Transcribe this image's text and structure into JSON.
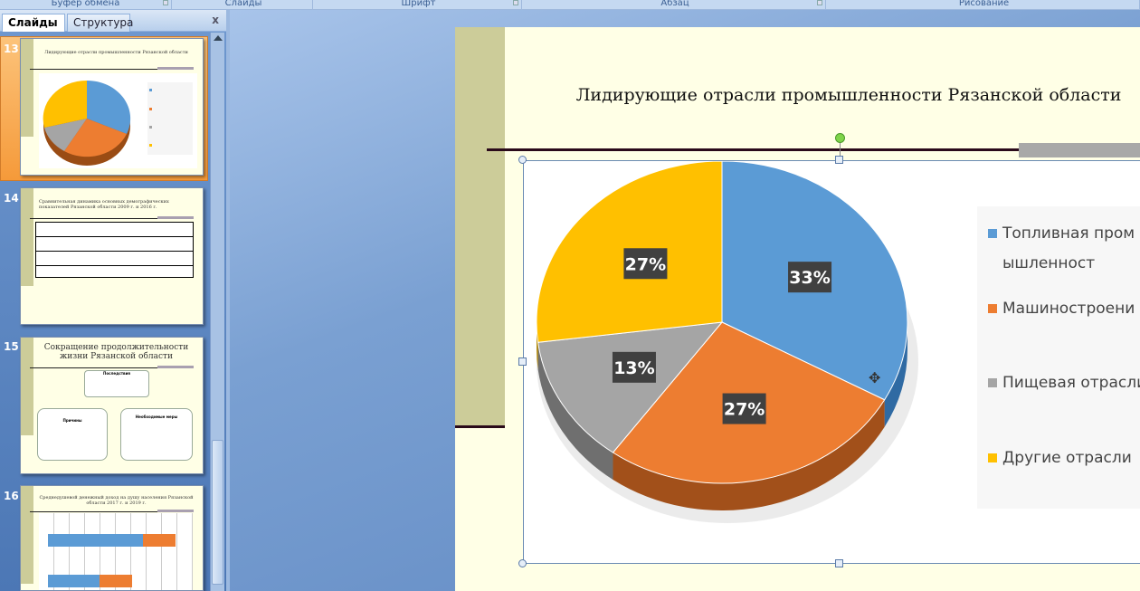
{
  "ribbon": {
    "groups": [
      "Буфер обмена",
      "Слайды",
      "Шрифт",
      "Абзац",
      "Рисование"
    ]
  },
  "panel": {
    "tabs": [
      "Слайды",
      "Структура"
    ],
    "close": "x"
  },
  "thumbnails": [
    {
      "number": "13",
      "title": "Лидирующие отрасли промышленности Рязанской области"
    },
    {
      "number": "14",
      "title": "Сравнительная динамика основных демографических показателей Рязанской области 2009 г. и 2016 г."
    },
    {
      "number": "15",
      "title": "Сокращение продолжительности жизни Рязанской области",
      "boxes": [
        "Последствия",
        "Причины",
        "Необходимые меры"
      ]
    },
    {
      "number": "16",
      "title": "Среднедушевой денежный доход на душу населения Рязанской области 2017 г. и 2019 г."
    }
  ],
  "slide": {
    "title": "Лидирующие отрасли промышленности Рязанской области",
    "chart": {
      "type": "pie",
      "labels": [
        "Топливная промышленност",
        "Машиностроени",
        "Пищевая отрасли",
        "Другие отрасли"
      ],
      "values": [
        33,
        27,
        13,
        27
      ],
      "value_labels": [
        "33%",
        "27%",
        "13%",
        "27%"
      ],
      "colors": [
        "#5b9bd5",
        "#ed7d31",
        "#a5a5a5",
        "#ffc000"
      ],
      "legend_position": "right"
    }
  },
  "colors": {
    "slide_bg": "#ffffe6",
    "band": "#cccc99",
    "selected_thumb": "#f7a94b"
  }
}
